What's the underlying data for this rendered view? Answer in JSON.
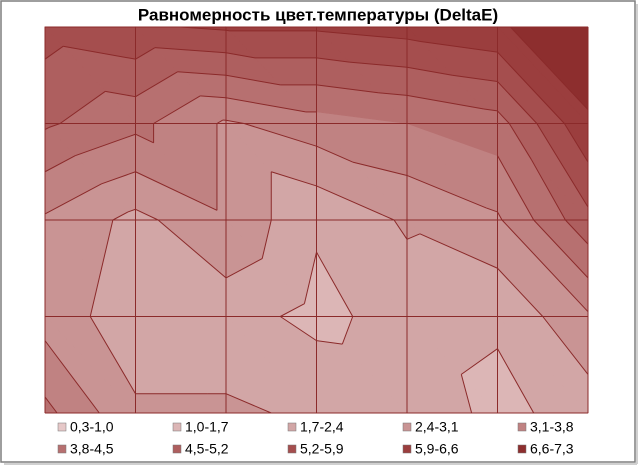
{
  "chart_data": {
    "type": "contour",
    "title": "Равномерность цвет.температуры (DeltaE)",
    "z": [
      [
        5.5,
        5.8,
        6.0,
        6.0,
        6.2,
        6.5,
        7.2
      ],
      [
        4.6,
        4.0,
        3.0,
        3.5,
        3.8,
        4.2,
        6.5
      ],
      [
        3.0,
        2.2,
        3.0,
        1.8,
        2.5,
        3.0,
        5.0
      ],
      [
        2.8,
        2.0,
        2.0,
        1.5,
        2.0,
        1.8,
        3.0
      ],
      [
        4.0,
        2.5,
        2.5,
        2.3,
        2.2,
        1.5,
        2.0
      ]
    ],
    "bands": [
      {
        "name": "0,3-1,0",
        "range": [
          0.3,
          1.0
        ],
        "color": "#e6c8c8"
      },
      {
        "name": "1,0-1,7",
        "range": [
          1.0,
          1.7
        ],
        "color": "#dcb6b6"
      },
      {
        "name": "1,7-2,4",
        "range": [
          1.7,
          2.4
        ],
        "color": "#d2a6a6"
      },
      {
        "name": "2,4-3,1",
        "range": [
          2.4,
          3.1
        ],
        "color": "#c99494"
      },
      {
        "name": "3,1-3,8",
        "range": [
          3.1,
          3.8
        ],
        "color": "#c08282"
      },
      {
        "name": "3,8-4,5",
        "range": [
          3.8,
          4.5
        ],
        "color": "#b77070"
      },
      {
        "name": "4,5-5,2",
        "range": [
          4.5,
          5.2
        ],
        "color": "#ae5f5f"
      },
      {
        "name": "5,2-5,9",
        "range": [
          5.2,
          5.9
        ],
        "color": "#a54e4e"
      },
      {
        "name": "5,9-6,6",
        "range": [
          5.9,
          6.6
        ],
        "color": "#9b3e3e"
      },
      {
        "name": "6,6-7,3",
        "range": [
          6.6,
          7.3
        ],
        "color": "#8d2e2e"
      }
    ],
    "line_color": "#8b2a2a",
    "grid": true
  }
}
